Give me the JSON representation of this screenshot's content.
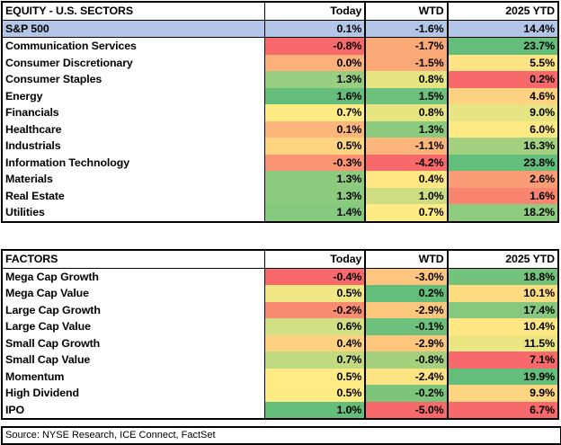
{
  "sectors_table": {
    "title": "EQUITY - U.S. SECTORS",
    "columns": [
      "Today",
      "WTD",
      "2025 YTD"
    ],
    "benchmark": {
      "name": "S&P 500",
      "values": [
        "0.1%",
        "-1.6%",
        "14.4%"
      ]
    },
    "rows": [
      {
        "name": "Communication Services",
        "values": [
          "-0.8%",
          "-1.7%",
          "23.7%"
        ],
        "colors": [
          "#f8696b",
          "#fbaa77",
          "#63be7b"
        ]
      },
      {
        "name": "Consumer Discretionary",
        "values": [
          "0.0%",
          "-1.5%",
          "5.5%"
        ],
        "colors": [
          "#fcb17a",
          "#fba877",
          "#ffe384"
        ]
      },
      {
        "name": "Consumer Staples",
        "values": [
          "1.3%",
          "0.8%",
          "0.2%"
        ],
        "colors": [
          "#98ce7f",
          "#e7e582",
          "#f8696b"
        ]
      },
      {
        "name": "Energy",
        "values": [
          "1.6%",
          "1.5%",
          "4.6%"
        ],
        "colors": [
          "#63be7b",
          "#6dc17c",
          "#fed280"
        ]
      },
      {
        "name": "Financials",
        "values": [
          "0.7%",
          "0.8%",
          "9.0%"
        ],
        "colors": [
          "#ffeb84",
          "#e7e582",
          "#e6e483"
        ]
      },
      {
        "name": "Healthcare",
        "values": [
          "0.1%",
          "1.3%",
          "6.0%"
        ],
        "colors": [
          "#fcb67b",
          "#8ccb7e",
          "#ffe985"
        ]
      },
      {
        "name": "Industrials",
        "values": [
          "0.5%",
          "-1.1%",
          "16.3%"
        ],
        "colors": [
          "#fed481",
          "#fcb57a",
          "#a4d17f"
        ]
      },
      {
        "name": "Information Technology",
        "values": [
          "-0.3%",
          "-4.2%",
          "23.8%"
        ],
        "colors": [
          "#fa9473",
          "#f8696b",
          "#63be7b"
        ]
      },
      {
        "name": "Materials",
        "values": [
          "1.3%",
          "0.4%",
          "2.6%"
        ],
        "colors": [
          "#8ccb7e",
          "#ffe784",
          "#fa9c75"
        ]
      },
      {
        "name": "Real Estate",
        "values": [
          "1.3%",
          "1.0%",
          "1.6%"
        ],
        "colors": [
          "#8ccb7e",
          "#cfdd82",
          "#f98570"
        ]
      },
      {
        "name": "Utilities",
        "values": [
          "1.4%",
          "0.7%",
          "18.2%"
        ],
        "colors": [
          "#84c97d",
          "#ffea84",
          "#8dcb7e"
        ]
      }
    ]
  },
  "factors_table": {
    "title": "FACTORS",
    "columns": [
      "Today",
      "WTD",
      "2025 YTD"
    ],
    "rows": [
      {
        "name": "Mega Cap Growth",
        "values": [
          "-0.4%",
          "-3.0%",
          "18.8%"
        ],
        "colors": [
          "#f8696b",
          "#fdc57d",
          "#74c37c"
        ]
      },
      {
        "name": "Mega Cap Value",
        "values": [
          "0.5%",
          "0.2%",
          "10.1%"
        ],
        "colors": [
          "#f0e683",
          "#63be7b",
          "#fedc82"
        ]
      },
      {
        "name": "Large Cap Growth",
        "values": [
          "-0.2%",
          "-2.9%",
          "17.4%"
        ],
        "colors": [
          "#f98b72",
          "#fdc67d",
          "#86c97e"
        ]
      },
      {
        "name": "Large Cap Value",
        "values": [
          "0.6%",
          "-0.1%",
          "10.4%"
        ],
        "colors": [
          "#d2df82",
          "#6dc17c",
          "#ffe784"
        ]
      },
      {
        "name": "Small Cap Growth",
        "values": [
          "0.4%",
          "-2.9%",
          "11.5%"
        ],
        "colors": [
          "#fed280",
          "#fdc67d",
          "#ebe582"
        ]
      },
      {
        "name": "Small Cap Value",
        "values": [
          "0.7%",
          "-0.8%",
          "7.1%"
        ],
        "colors": [
          "#c1d980",
          "#a5d17f",
          "#f8696b"
        ]
      },
      {
        "name": "Momentum",
        "values": [
          "0.5%",
          "-2.4%",
          "19.9%"
        ],
        "colors": [
          "#ffeb84",
          "#fee383",
          "#63be7b"
        ]
      },
      {
        "name": "High Dividend",
        "values": [
          "0.5%",
          "-0.2%",
          "9.9%"
        ],
        "colors": [
          "#ffeb84",
          "#7dc57d",
          "#fed580"
        ]
      },
      {
        "name": "IPO",
        "values": [
          "1.0%",
          "-5.0%",
          "6.7%"
        ],
        "colors": [
          "#63be7b",
          "#f8696b",
          "#f8696b"
        ]
      }
    ]
  },
  "source": "Source: NYSE Research, ICE Connect, FactSet",
  "colors": {
    "benchmark_row": "#b4c6e7",
    "border": "#000000"
  }
}
